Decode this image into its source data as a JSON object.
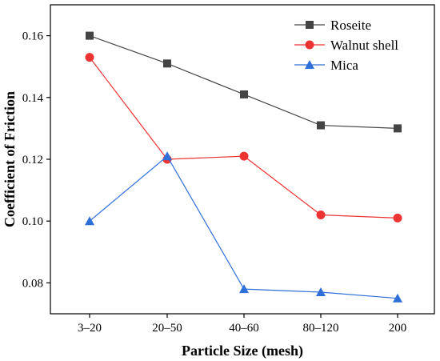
{
  "chart_data": {
    "type": "line",
    "categories": [
      "3–20",
      "20–50",
      "40–60",
      "80–120",
      "200"
    ],
    "xlabel": "Particle Size (mesh)",
    "ylabel": "Coefficient of Friction",
    "ylim": [
      0.07,
      0.17
    ],
    "yticks": [
      0.08,
      0.1,
      0.12,
      0.14,
      0.16
    ],
    "ytick_labels": [
      "0.08",
      "0.10",
      "0.12",
      "0.14",
      "0.16"
    ],
    "grid": false,
    "legend_position": "top-right",
    "series": [
      {
        "name": "Roseite",
        "values": [
          0.16,
          0.151,
          0.141,
          0.131,
          0.13
        ],
        "color": "#444444",
        "marker": "square"
      },
      {
        "name": "Walnut shell",
        "values": [
          0.153,
          0.12,
          0.121,
          0.102,
          0.101
        ],
        "color": "#ee3333",
        "marker": "circle"
      },
      {
        "name": "Mica",
        "values": [
          0.1,
          0.121,
          0.078,
          0.077,
          0.075
        ],
        "color": "#2f6fd8",
        "marker": "triangle"
      }
    ]
  }
}
